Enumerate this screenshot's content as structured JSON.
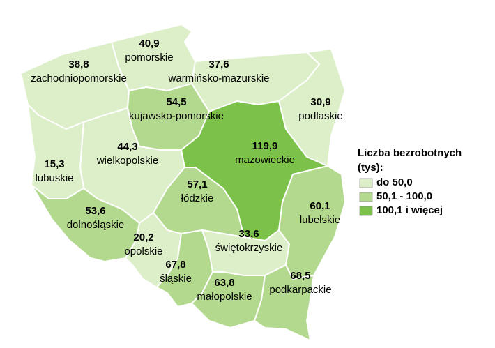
{
  "chart_data": {
    "type": "choropleth",
    "categories": [
      "zachodniopomorskie",
      "pomorskie",
      "warmińsko-mazurskie",
      "podlaskie",
      "kujawsko-pomorskie",
      "wielkopolskie",
      "lubuskie",
      "mazowieckie",
      "łódzkie",
      "dolnośląskie",
      "opolskie",
      "śląskie",
      "świętokrzyskie",
      "małopolskie",
      "lubelskie",
      "podkarpackie"
    ],
    "values": [
      38.8,
      40.9,
      37.6,
      30.9,
      54.5,
      44.3,
      15.3,
      119.9,
      57.1,
      53.6,
      20.2,
      67.8,
      33.6,
      63.8,
      60.1,
      68.5
    ],
    "value_labels": [
      "38,8",
      "40,9",
      "37,6",
      "30,9",
      "54,5",
      "44,3",
      "15,3",
      "119,9",
      "57,1",
      "53,6",
      "20,2",
      "67,8",
      "33,6",
      "63,8",
      "60,1",
      "68,5"
    ],
    "legend_title": "Liczba bezrobotnych (tys):",
    "classes": [
      {
        "label": "do 50,0",
        "to": 50.0,
        "color": "#dcefc9"
      },
      {
        "label": "50,1 - 100,0",
        "from": 50.1,
        "to": 100.0,
        "color": "#b3d98f"
      },
      {
        "label": "100,1 i więcej",
        "from": 100.1,
        "color": "#7cc24a"
      }
    ]
  }
}
